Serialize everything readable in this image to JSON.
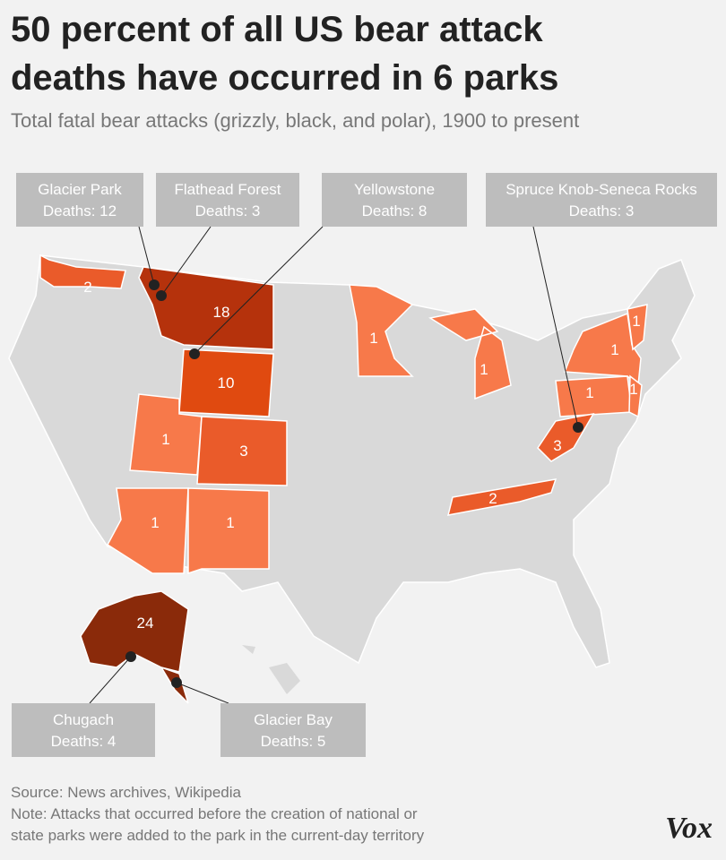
{
  "title_lines": [
    "50 percent of all US bear attack",
    "deaths have occurred in 6 parks"
  ],
  "subtitle": "Total fatal bear attacks (grizzly, black, and polar), 1900 to present",
  "map": {
    "base_color": "#d9d9d9",
    "regions": [
      {
        "value": 2,
        "color": "#ea5b2a"
      },
      {
        "value": 18,
        "color": "#b5320c"
      },
      {
        "value": 10,
        "color": "#e04a10"
      },
      {
        "value": 1,
        "color": "#f7794a"
      },
      {
        "value": 3,
        "color": "#ea5b2a"
      },
      {
        "value": 1,
        "color": "#f7794a"
      },
      {
        "value": 1,
        "color": "#f7794a"
      },
      {
        "value": 1,
        "color": "#f7794a"
      },
      {
        "value": 1,
        "color": "#f7794a"
      },
      {
        "value": 1,
        "color": "#f7794a"
      },
      {
        "value": 1,
        "color": "#f7794a"
      },
      {
        "value": 1,
        "color": "#f7794a"
      },
      {
        "value": 1,
        "color": "#f7794a"
      },
      {
        "value": 3,
        "color": "#ea5b2a"
      },
      {
        "value": 2,
        "color": "#ea5b2a"
      },
      {
        "value": 24,
        "color": "#8a2a0a"
      }
    ]
  },
  "callouts": [
    {
      "name": "Glacier Park",
      "deaths": "Deaths: 12"
    },
    {
      "name": "Flathead Forest",
      "deaths": "Deaths: 3"
    },
    {
      "name": "Yellowstone",
      "deaths": "Deaths: 8"
    },
    {
      "name": "Spruce Knob-Seneca Rocks",
      "deaths": "Deaths: 3"
    },
    {
      "name": "Chugach",
      "deaths": "Deaths: 4"
    },
    {
      "name": "Glacier Bay",
      "deaths": "Deaths: 5"
    }
  ],
  "footer": [
    "Source: News archives, Wikipedia",
    "Note: Attacks that occurred before the creation of national or",
    "state parks were added to the park in the current-day territory"
  ],
  "logo": "Vox"
}
